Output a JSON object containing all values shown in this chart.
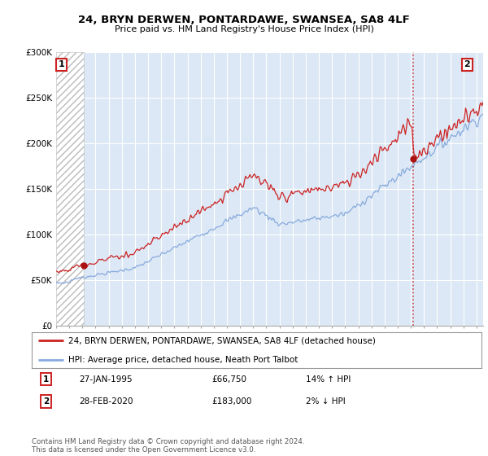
{
  "title": "24, BRYN DERWEN, PONTARDAWE, SWANSEA, SA8 4LF",
  "subtitle": "Price paid vs. HM Land Registry's House Price Index (HPI)",
  "legend_line1": "24, BRYN DERWEN, PONTARDAWE, SWANSEA, SA8 4LF (detached house)",
  "legend_line2": "HPI: Average price, detached house, Neath Port Talbot",
  "annotation1_date": "27-JAN-1995",
  "annotation1_price": "£66,750",
  "annotation1_hpi": "14% ↑ HPI",
  "annotation2_date": "28-FEB-2020",
  "annotation2_price": "£183,000",
  "annotation2_hpi": "2% ↓ HPI",
  "footer": "Contains HM Land Registry data © Crown copyright and database right 2024.\nThis data is licensed under the Open Government Licence v3.0.",
  "sale1_year": 1995.08,
  "sale1_price": 66750,
  "sale2_year": 2020.16,
  "sale2_price": 183000,
  "xmin": 1993,
  "xmax": 2025.5,
  "ymin": 0,
  "ymax": 300000,
  "plot_bg": "#dce8f5",
  "grid_color": "#ffffff",
  "red_line_color": "#cc2222",
  "blue_line_color": "#88aadd",
  "sale_dot_color": "#aa1111",
  "vline_color": "#cc2222",
  "hatch_region_end": 1995.08
}
